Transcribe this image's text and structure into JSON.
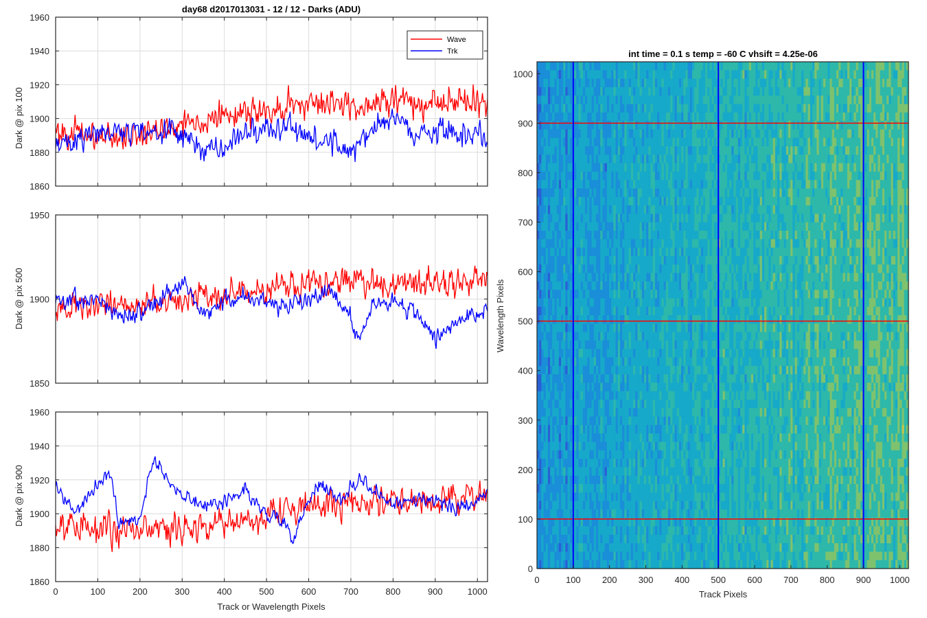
{
  "chart_data": [
    {
      "type": "line",
      "id": "p1",
      "title": "day68 d2017013031 - 12 / 12 - Darks (ADU)",
      "xlabel": "",
      "ylabel": "Dark @ pix 100",
      "xlim": [
        0,
        1024
      ],
      "ylim": [
        1860,
        1960
      ],
      "xticks": [
        0,
        100,
        200,
        300,
        400,
        500,
        600,
        700,
        800,
        900,
        1000
      ],
      "yticks": [
        1860,
        1880,
        1900,
        1920,
        1940,
        1960
      ],
      "grid": true,
      "legend": {
        "position": "top-right",
        "entries": [
          "Wave",
          "Trk"
        ]
      },
      "series": [
        {
          "name": "Wave",
          "color": "#ff0000",
          "noise": 8,
          "x": [
            0,
            100,
            200,
            300,
            400,
            500,
            600,
            700,
            800,
            900,
            1000,
            1024
          ],
          "y": [
            1893,
            1889,
            1890,
            1897,
            1901,
            1905,
            1909,
            1908,
            1911,
            1910,
            1911,
            1910
          ]
        },
        {
          "name": "Trk",
          "color": "#0000ff",
          "noise": 7,
          "x": [
            0,
            50,
            100,
            200,
            300,
            330,
            400,
            450,
            500,
            550,
            600,
            700,
            750,
            800,
            850,
            900,
            1000,
            1024
          ],
          "y": [
            1886,
            1888,
            1892,
            1893,
            1891,
            1882,
            1882,
            1892,
            1895,
            1896,
            1890,
            1880,
            1895,
            1902,
            1888,
            1893,
            1890,
            1886
          ]
        }
      ]
    },
    {
      "type": "line",
      "id": "p2",
      "title": "",
      "xlabel": "",
      "ylabel": "Dark @ pix 500",
      "xlim": [
        0,
        1024
      ],
      "ylim": [
        1850,
        1950
      ],
      "xticks": [
        0,
        100,
        200,
        300,
        400,
        500,
        600,
        700,
        800,
        900,
        1000
      ],
      "yticks": [
        1850,
        1900,
        1950
      ],
      "grid": true,
      "series": [
        {
          "name": "Wave",
          "color": "#ff0000",
          "noise": 8,
          "x": [
            0,
            100,
            200,
            300,
            400,
            500,
            600,
            700,
            800,
            900,
            1000,
            1024
          ],
          "y": [
            1893,
            1896,
            1898,
            1900,
            1902,
            1906,
            1909,
            1911,
            1910,
            1908,
            1911,
            1912
          ]
        },
        {
          "name": "Trk",
          "color": "#0000ff",
          "noise": 5,
          "x": [
            0,
            100,
            150,
            200,
            250,
            300,
            350,
            400,
            450,
            500,
            550,
            600,
            650,
            700,
            720,
            750,
            800,
            850,
            900,
            950,
            1000,
            1024
          ],
          "y": [
            1898,
            1900,
            1890,
            1892,
            1900,
            1910,
            1890,
            1899,
            1902,
            1897,
            1895,
            1900,
            1905,
            1888,
            1875,
            1897,
            1900,
            1893,
            1875,
            1885,
            1892,
            1895
          ]
        }
      ]
    },
    {
      "type": "line",
      "id": "p3",
      "title": "",
      "xlabel": "Track or Wavelength Pixels",
      "ylabel": "Dark @ pix 900",
      "xlim": [
        0,
        1024
      ],
      "ylim": [
        1860,
        1960
      ],
      "xticks": [
        0,
        100,
        200,
        300,
        400,
        500,
        600,
        700,
        800,
        900,
        1000
      ],
      "yticks": [
        1860,
        1880,
        1900,
        1920,
        1940,
        1960
      ],
      "grid": true,
      "series": [
        {
          "name": "Wave",
          "color": "#ff0000",
          "noise": 9,
          "x": [
            0,
            100,
            200,
            300,
            400,
            500,
            600,
            700,
            800,
            900,
            1000,
            1024
          ],
          "y": [
            1893,
            1890,
            1891,
            1892,
            1894,
            1900,
            1904,
            1907,
            1908,
            1908,
            1910,
            1912
          ]
        },
        {
          "name": "Trk",
          "color": "#0000ff",
          "noise": 4,
          "x": [
            0,
            50,
            80,
            130,
            150,
            200,
            230,
            280,
            350,
            400,
            450,
            500,
            540,
            560,
            620,
            680,
            720,
            800,
            850,
            900,
            950,
            1000,
            1024
          ],
          "y": [
            1915,
            1900,
            1912,
            1925,
            1893,
            1898,
            1933,
            1915,
            1905,
            1908,
            1914,
            1900,
            1895,
            1885,
            1918,
            1908,
            1922,
            1905,
            1908,
            1907,
            1903,
            1908,
            1912
          ]
        }
      ]
    },
    {
      "type": "heatmap",
      "id": "p4",
      "title": "int time = 0.1 s   temp = -60 C   vhsift = 4.25e-06",
      "xlabel": "Track Pixels",
      "ylabel": "Wavelength Pixels",
      "xlim": [
        0,
        1024
      ],
      "ylim": [
        0,
        1024
      ],
      "xticks": [
        0,
        100,
        200,
        300,
        400,
        500,
        600,
        700,
        800,
        900,
        1000
      ],
      "yticks": [
        0,
        100,
        200,
        300,
        400,
        500,
        600,
        700,
        800,
        900,
        1000
      ],
      "markers": {
        "vertical": {
          "values": [
            100,
            500,
            900
          ],
          "color": "#0000ff"
        },
        "horizontal": {
          "values": [
            100,
            500,
            900
          ],
          "color": "#ff0000"
        }
      },
      "colormap": [
        "#2a5fd6",
        "#1a8ed8",
        "#17a9c9",
        "#2db8aa",
        "#7ec26e",
        "#c9c546"
      ]
    }
  ]
}
